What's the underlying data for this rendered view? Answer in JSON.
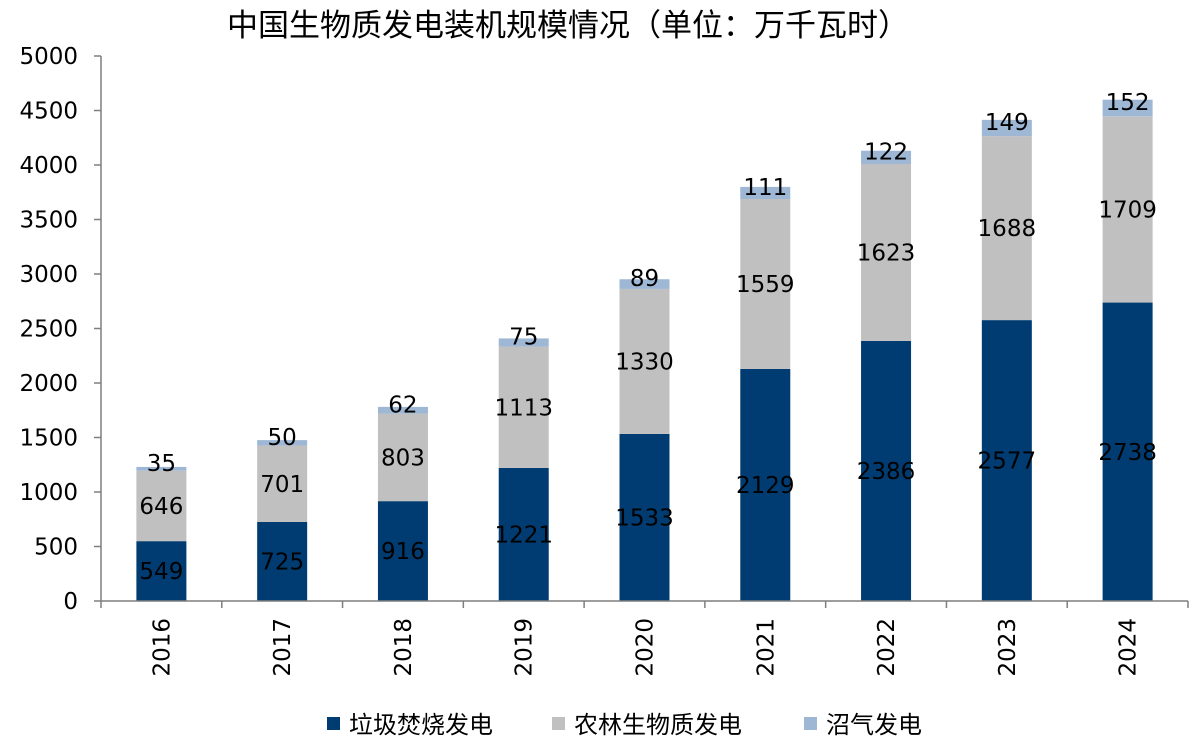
{
  "chart_data": {
    "type": "bar",
    "stacked": true,
    "title": "中国生物质发电装机规模情况（单位：万千瓦时）",
    "xlabel": "",
    "ylabel": "",
    "categories": [
      "2016",
      "2017",
      "2018",
      "2019",
      "2020",
      "2021",
      "2022",
      "2023",
      "2024"
    ],
    "ylim": [
      0,
      5000
    ],
    "yticks": [
      "0",
      "500",
      "1000",
      "1500",
      "2000",
      "2500",
      "3000",
      "3500",
      "4000",
      "4500",
      "5000"
    ],
    "ytick_values": [
      0,
      500,
      1000,
      1500,
      2000,
      2500,
      3000,
      3500,
      4000,
      4500,
      5000
    ],
    "grid": false,
    "legend_position": "bottom",
    "series": [
      {
        "name": "垃圾焚烧发电",
        "color": "#003c71",
        "values": [
          549,
          725,
          916,
          1221,
          1533,
          2129,
          2386,
          2577,
          2738
        ],
        "labels": [
          "549",
          "725",
          "916",
          "1221",
          "1533",
          "2129",
          "2386",
          "2577",
          "2738"
        ]
      },
      {
        "name": "农林生物质发电",
        "color": "#c0c0c0",
        "values": [
          646,
          701,
          803,
          1113,
          1330,
          1559,
          1623,
          1688,
          1709
        ],
        "labels": [
          "646",
          "701",
          "803",
          "1113",
          "1330",
          "1559",
          "1623",
          "1688",
          "1709"
        ]
      },
      {
        "name": "沼气发电",
        "color": "#9db7d5",
        "values": [
          35,
          50,
          62,
          75,
          89,
          111,
          122,
          149,
          152
        ],
        "labels": [
          "35",
          "50",
          "62",
          "75",
          "89",
          "111",
          "122",
          "149",
          "152"
        ]
      }
    ]
  }
}
